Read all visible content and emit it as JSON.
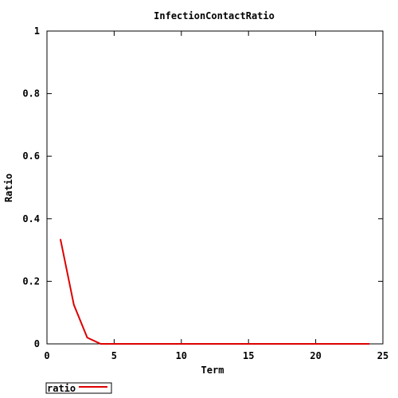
{
  "chart_data": {
    "type": "line",
    "title": "InfectionContactRatio",
    "xlabel": "Term",
    "ylabel": "Ratio",
    "xlim": [
      0,
      25
    ],
    "ylim": [
      0,
      1
    ],
    "x_ticks": [
      "0",
      "5",
      "10",
      "15",
      "20",
      "25"
    ],
    "y_ticks": [
      "0",
      "0.2",
      "0.4",
      "0.6",
      "0.8",
      "1"
    ],
    "grid": false,
    "legend_position": "bottom-left",
    "series": [
      {
        "name": "ratio",
        "color": "#dd0000",
        "x": [
          1,
          2,
          3,
          4,
          5,
          6,
          7,
          8,
          9,
          10,
          11,
          12,
          13,
          14,
          15,
          16,
          17,
          18,
          19,
          20,
          21,
          22,
          23,
          24
        ],
        "values": [
          0.335,
          0.125,
          0.02,
          0.0,
          0.0,
          0.0,
          0.0,
          0.0,
          0.0,
          0.0,
          0.0,
          0.0,
          0.0,
          0.0,
          0.0,
          0.0,
          0.0,
          0.0,
          0.0,
          0.0,
          0.0,
          0.0,
          0.0,
          0.0
        ]
      }
    ]
  }
}
